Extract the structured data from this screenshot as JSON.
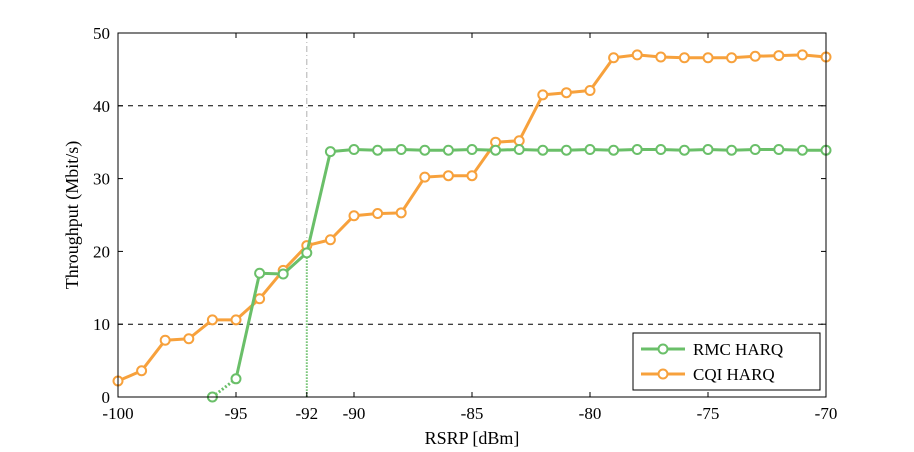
{
  "chart_data": {
    "type": "line",
    "xlabel": "RSRP [dBm]",
    "ylabel": "Throughput (Mbit/s)",
    "xlim": [
      -100,
      -70
    ],
    "ylim": [
      0,
      50
    ],
    "xticks": [
      -100,
      -95,
      -92,
      -90,
      -85,
      -80,
      -75,
      -70
    ],
    "yticks": [
      0,
      10,
      20,
      30,
      40,
      50
    ],
    "grid": "horizontal dashed at 10, 40",
    "reference_line_x": -92,
    "legend_position": "bottom-right",
    "series": [
      {
        "name": "RMC HARQ",
        "color": "#6abf69",
        "x": [
          -96,
          -95,
          -94,
          -93,
          -92,
          -91,
          -90,
          -89,
          -88,
          -87,
          -86,
          -85,
          -84,
          -83,
          -82,
          -81,
          -80,
          -79,
          -78,
          -77,
          -76,
          -75,
          -74,
          -73,
          -72,
          -71,
          -70
        ],
        "values": [
          0,
          2.5,
          17,
          16.9,
          19.8,
          33.7,
          34,
          33.9,
          34,
          33.9,
          33.9,
          34,
          33.9,
          34,
          33.9,
          33.9,
          34,
          33.9,
          34,
          34,
          33.9,
          34,
          33.9,
          34,
          34,
          33.9,
          33.9
        ]
      },
      {
        "name": "CQI HARQ",
        "color": "#f7a13c",
        "x": [
          -100,
          -99,
          -98,
          -97,
          -96,
          -95,
          -94,
          -93,
          -92,
          -91,
          -90,
          -89,
          -88,
          -87,
          -86,
          -85,
          -84,
          -83,
          -82,
          -81,
          -80,
          -79,
          -78,
          -77,
          -76,
          -75,
          -74,
          -73,
          -72,
          -71,
          -70
        ],
        "values": [
          2.2,
          3.6,
          7.8,
          8,
          10.6,
          10.6,
          13.5,
          17.4,
          20.8,
          21.6,
          24.9,
          25.2,
          25.3,
          30.2,
          30.4,
          30.4,
          35,
          35.2,
          41.5,
          41.8,
          42.1,
          46.6,
          47,
          46.7,
          46.6,
          46.6,
          46.6,
          46.8,
          46.9,
          47,
          46.7
        ]
      }
    ]
  }
}
